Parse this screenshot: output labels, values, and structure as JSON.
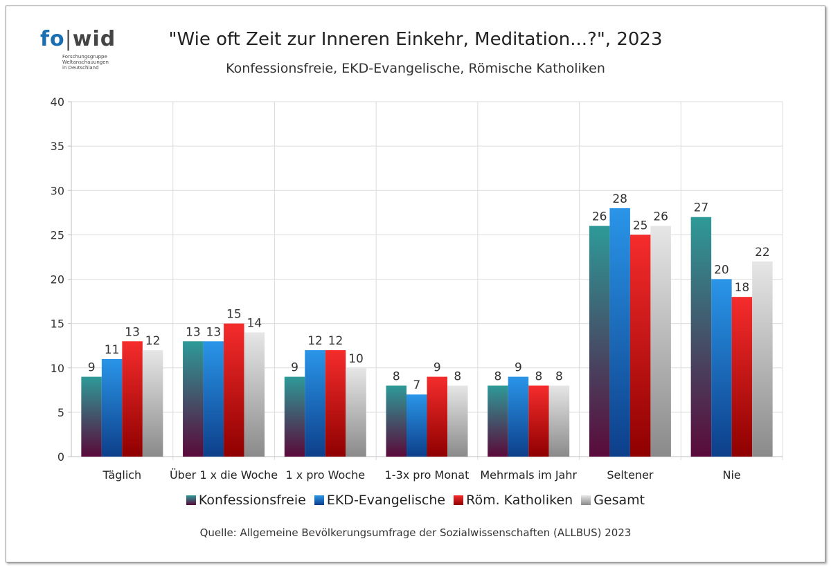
{
  "logo": {
    "word_fo": "fo",
    "word_wid": "wid",
    "subtitle_lines": [
      "Forschungsgruppe",
      "Weltanschauungen",
      "in Deutschland"
    ]
  },
  "chart_data": {
    "type": "bar",
    "title": "\"Wie oft Zeit zur Inneren Einkehr, Meditation...?\", 2023",
    "subtitle": "Konfessionsfreie, EKD-Evangelische, Römische Katholiken",
    "source": "Quelle: Allgemeine Bevölkerungsumfrage der Sozialwissenschaften (ALLBUS) 2023",
    "categories": [
      "Täglich",
      "Über 1 x die Woche",
      "1 x pro Woche",
      "1-3x pro Monat",
      "Mehrmals im Jahr",
      "Seltener",
      "Nie"
    ],
    "series": [
      {
        "name": "Konfessionsfreie",
        "values": [
          9,
          13,
          9,
          8,
          8,
          26,
          27
        ],
        "color_top": "#2e9a98",
        "color_bottom": "#5a0a3a"
      },
      {
        "name": "EKD-Evangelische",
        "values": [
          11,
          13,
          12,
          7,
          9,
          28,
          20
        ],
        "color_top": "#2a95e8",
        "color_bottom": "#0d3f8a"
      },
      {
        "name": "Röm. Katholiken",
        "values": [
          13,
          15,
          12,
          9,
          8,
          25,
          18
        ],
        "color_top": "#f52c2c",
        "color_bottom": "#8f0000"
      },
      {
        "name": "Gesamt",
        "values": [
          12,
          14,
          10,
          8,
          8,
          26,
          22
        ],
        "color_top": "#e6e6e6",
        "color_bottom": "#8a8a8a"
      }
    ],
    "ylim": [
      0,
      40
    ],
    "yticks": [
      0,
      5,
      10,
      15,
      20,
      25,
      30,
      35,
      40
    ],
    "grid": true,
    "legend_position": "bottom"
  }
}
